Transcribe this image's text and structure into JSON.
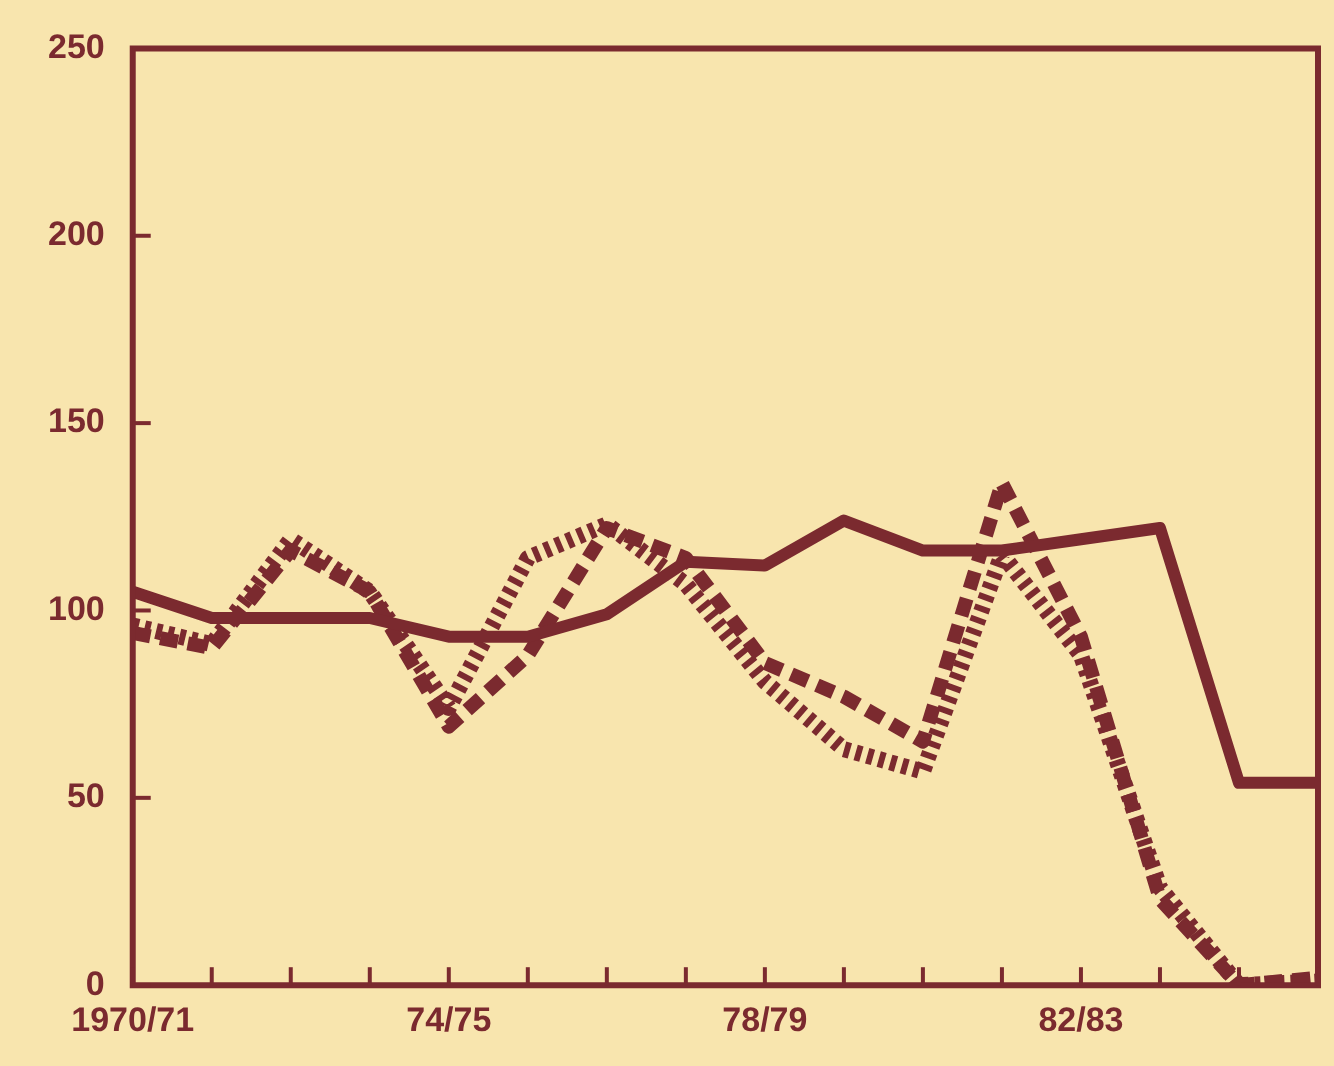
{
  "chart_data": {
    "type": "line",
    "categories": [
      "1970/71",
      null,
      null,
      null,
      "74/75",
      null,
      null,
      null,
      "78/79",
      null,
      null,
      null,
      "82/83",
      null,
      null,
      null
    ],
    "series": [
      {
        "color": "#7b2a2f",
        "line_style": "solid",
        "values": [
          105,
          98,
          98,
          98,
          93,
          93,
          99,
          113,
          112,
          124,
          116,
          116,
          119,
          122,
          54,
          54
        ]
      },
      {
        "color": "#7b2a2f",
        "line_style": "dashed",
        "values": [
          94,
          90,
          116,
          105,
          69,
          88,
          122,
          114,
          86,
          77,
          65,
          134,
          93,
          23,
          0,
          2
        ]
      },
      {
        "color": "#7b2a2f",
        "line_style": "dotted",
        "values": [
          96,
          91,
          119,
          105,
          74,
          114,
          123,
          107,
          81,
          63,
          57,
          115,
          88,
          26,
          0,
          1
        ]
      }
    ],
    "ylim": [
      0,
      250
    ],
    "yticks": [
      0,
      50,
      100,
      150,
      200,
      250
    ],
    "grid": false,
    "legend": false,
    "marker": "none"
  }
}
